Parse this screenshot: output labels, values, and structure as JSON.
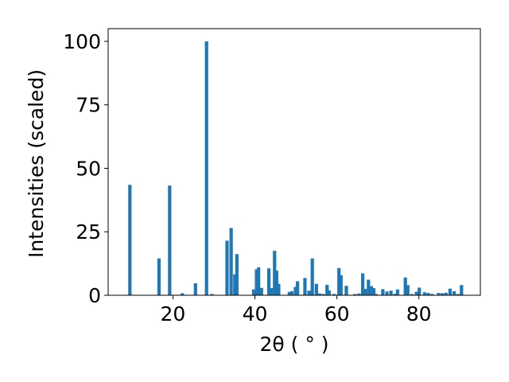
{
  "chart_data": {
    "type": "bar",
    "xlabel": "2θ ( ° )",
    "ylabel": "Intensities (scaled)",
    "xlim": [
      4.2,
      95
    ],
    "ylim": [
      0,
      105
    ],
    "xticks": [
      20,
      40,
      60,
      80
    ],
    "yticks": [
      0,
      25,
      50,
      75,
      100
    ],
    "bar_color": "#1f77b4",
    "grid": false,
    "peaks": {
      "x": [
        9.5,
        16.6,
        19.2,
        22.3,
        25.5,
        28.2,
        29.5,
        33.2,
        34.2,
        35.1,
        35.6,
        39.7,
        40.4,
        40.9,
        41.6,
        43.4,
        44.0,
        44.8,
        45.3,
        45.8,
        48.4,
        49.0,
        49.9,
        50.4,
        52.2,
        53.2,
        54.0,
        55.0,
        55.8,
        56.7,
        57.6,
        58.1,
        59.3,
        60.5,
        61.0,
        62.3,
        64.4,
        65.4,
        66.3,
        66.9,
        67.7,
        68.4,
        69.0,
        69.6,
        71.2,
        72.2,
        73.2,
        74.2,
        74.8,
        76.7,
        77.3,
        78.3,
        79.4,
        80.1,
        81.4,
        82.3,
        83.2,
        84.8,
        85.7,
        86.6,
        87.6,
        88.6,
        89.5,
        90.4
      ],
      "y": [
        43.5,
        14.5,
        43.2,
        0.8,
        4.7,
        100,
        0.5,
        21.5,
        26.5,
        8.2,
        16.2,
        2.3,
        10.2,
        11.0,
        2.9,
        10.6,
        2.8,
        17.5,
        9.7,
        4.5,
        1.3,
        1.6,
        3.3,
        5.5,
        6.8,
        1.8,
        14.5,
        4.5,
        0.7,
        0.5,
        4.1,
        1.9,
        0.5,
        10.7,
        7.9,
        3.7,
        0.5,
        0.7,
        8.6,
        2.5,
        6.1,
        3.6,
        2.8,
        0.5,
        2.4,
        1.5,
        1.8,
        0.6,
        2.3,
        7.0,
        4.0,
        0.5,
        1.4,
        3.0,
        1.2,
        0.9,
        0.5,
        0.9,
        0.8,
        1.0,
        2.6,
        1.6,
        0.5,
        4.0
      ]
    }
  }
}
